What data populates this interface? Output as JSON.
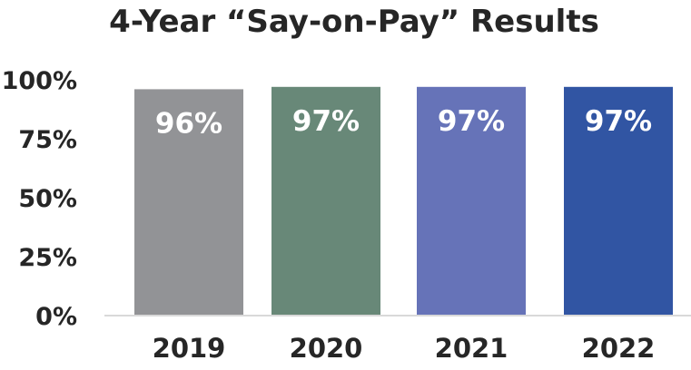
{
  "chart_data": {
    "type": "bar",
    "title": "4-Year “Say-on-Pay” Results",
    "categories": [
      "2019",
      "2020",
      "2021",
      "2022"
    ],
    "values": [
      96,
      97,
      97,
      97
    ],
    "data_labels": [
      "96%",
      "97%",
      "97%",
      "97%"
    ],
    "bar_colors": [
      "#929396",
      "#688878",
      "#6673b8",
      "#3155a3"
    ],
    "ylim": [
      0,
      100
    ],
    "yticks": [
      0,
      25,
      50,
      75,
      100
    ],
    "ytick_labels": [
      "0%",
      "25%",
      "50%",
      "75%",
      "100%"
    ],
    "xlabel": "",
    "ylabel": "",
    "grid": false,
    "legend": "none"
  }
}
